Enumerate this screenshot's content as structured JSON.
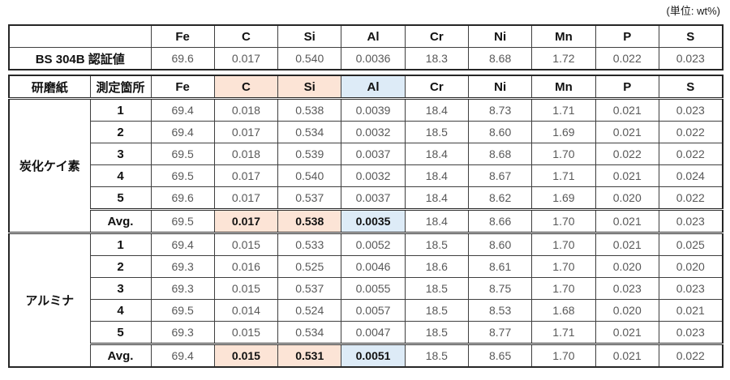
{
  "unit_label": "(単位: wt%)",
  "colors": {
    "highlight_orange": "#FCE4D6",
    "highlight_blue": "#DDEBF7",
    "border": "#3f3f3f",
    "value_text": "#595959",
    "header_text": "#111111"
  },
  "elements": [
    "Fe",
    "C",
    "Si",
    "Al",
    "Cr",
    "Ni",
    "Mn",
    "P",
    "S"
  ],
  "reference_table": {
    "label": "BS 304B  認証値",
    "values": [
      "69.6",
      "0.017",
      "0.540",
      "0.0036",
      "18.3",
      "8.68",
      "1.72",
      "0.022",
      "0.023"
    ]
  },
  "measurement_table": {
    "col1_header": "研磨紙",
    "col2_header": "測定箇所",
    "orange_cols": [
      1,
      2
    ],
    "blue_cols": [
      3
    ],
    "sections": [
      {
        "name": "炭化ケイ素",
        "rows": [
          {
            "label": "1",
            "values": [
              "69.4",
              "0.018",
              "0.538",
              "0.0039",
              "18.4",
              "8.73",
              "1.71",
              "0.021",
              "0.023"
            ]
          },
          {
            "label": "2",
            "values": [
              "69.4",
              "0.017",
              "0.534",
              "0.0032",
              "18.5",
              "8.60",
              "1.69",
              "0.021",
              "0.022"
            ]
          },
          {
            "label": "3",
            "values": [
              "69.5",
              "0.018",
              "0.539",
              "0.0037",
              "18.4",
              "8.68",
              "1.70",
              "0.022",
              "0.022"
            ]
          },
          {
            "label": "4",
            "values": [
              "69.5",
              "0.017",
              "0.540",
              "0.0032",
              "18.4",
              "8.67",
              "1.71",
              "0.021",
              "0.024"
            ]
          },
          {
            "label": "5",
            "values": [
              "69.6",
              "0.017",
              "0.537",
              "0.0037",
              "18.4",
              "8.62",
              "1.69",
              "0.020",
              "0.022"
            ]
          },
          {
            "label": "Avg.",
            "values": [
              "69.5",
              "0.017",
              "0.538",
              "0.0035",
              "18.4",
              "8.66",
              "1.70",
              "0.021",
              "0.023"
            ],
            "is_avg": true
          }
        ]
      },
      {
        "name": "アルミナ",
        "rows": [
          {
            "label": "1",
            "values": [
              "69.4",
              "0.015",
              "0.533",
              "0.0052",
              "18.5",
              "8.60",
              "1.70",
              "0.021",
              "0.025"
            ]
          },
          {
            "label": "2",
            "values": [
              "69.3",
              "0.016",
              "0.525",
              "0.0046",
              "18.6",
              "8.61",
              "1.70",
              "0.020",
              "0.020"
            ]
          },
          {
            "label": "3",
            "values": [
              "69.3",
              "0.015",
              "0.537",
              "0.0055",
              "18.5",
              "8.75",
              "1.70",
              "0.023",
              "0.023"
            ]
          },
          {
            "label": "4",
            "values": [
              "69.5",
              "0.014",
              "0.524",
              "0.0057",
              "18.5",
              "8.53",
              "1.68",
              "0.020",
              "0.021"
            ]
          },
          {
            "label": "5",
            "values": [
              "69.3",
              "0.015",
              "0.534",
              "0.0047",
              "18.5",
              "8.77",
              "1.71",
              "0.021",
              "0.023"
            ]
          },
          {
            "label": "Avg.",
            "values": [
              "69.4",
              "0.015",
              "0.531",
              "0.0051",
              "18.5",
              "8.65",
              "1.70",
              "0.021",
              "0.022"
            ],
            "is_avg": true
          }
        ]
      }
    ]
  }
}
